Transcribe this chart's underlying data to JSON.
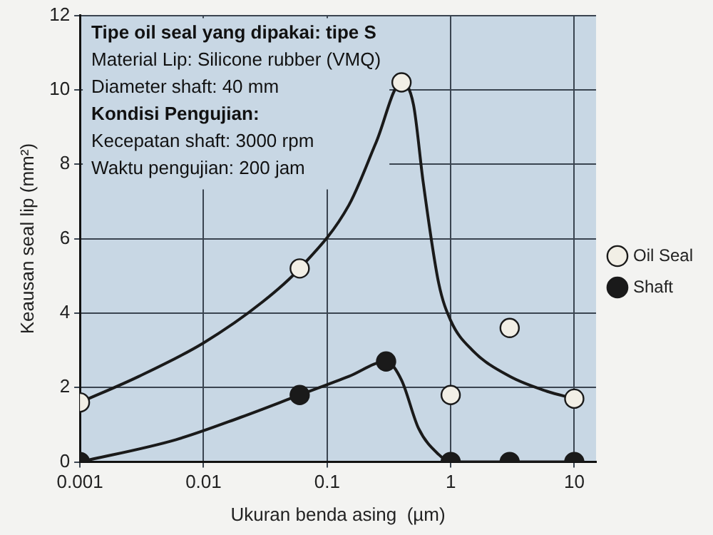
{
  "chart_data": {
    "type": "scatter",
    "xlabel": "Ukuran benda asing  (µm)",
    "ylabel": "Keausan seal lip (mm²)",
    "log": "x",
    "xlim": [
      0.001,
      15
    ],
    "xticks": [
      0.001,
      0.01,
      0.1,
      1,
      10
    ],
    "ylim": [
      0,
      12
    ],
    "yticks": [
      0,
      2,
      4,
      6,
      8,
      10,
      12
    ],
    "grid": true,
    "legend": "right",
    "annotations": [
      "Tipe oil seal yang dipakai: tipe S",
      "Material Lip: Silicone rubber (VMQ)",
      "Diameter shaft: 40 mm",
      "Kondisi Pengujian:",
      "Kecepatan shaft: 3000 rpm",
      "Waktu pengujian: 200 jam"
    ],
    "series": [
      {
        "type": "line",
        "marker": "none",
        "color": "#1a1a1a",
        "x": [
          0.001,
          0.003,
          0.01,
          0.03,
          0.06,
          0.15,
          0.25,
          0.4,
          0.5,
          0.6,
          0.8,
          1,
          1.5,
          3,
          6,
          10
        ],
        "values": [
          1.6,
          2.3,
          3.2,
          4.3,
          5.2,
          6.9,
          8.6,
          10.2,
          9.6,
          7.5,
          4.8,
          3.8,
          3,
          2.3,
          1.9,
          1.7
        ]
      },
      {
        "type": "line",
        "marker": "none",
        "color": "#1a1a1a",
        "x": [
          0.001,
          0.006,
          0.02,
          0.06,
          0.15,
          0.3,
          0.4,
          0.55,
          0.8,
          1,
          2,
          3,
          6,
          10
        ],
        "values": [
          0,
          0.6,
          1.2,
          1.8,
          2.3,
          2.7,
          2.2,
          0.9,
          0.2,
          0,
          0,
          0,
          0,
          0
        ]
      },
      {
        "name": "Oil Seal",
        "type": "scatter",
        "marker": "circle",
        "color": "#f2efe6",
        "x": [
          0.001,
          0.06,
          0.4,
          1,
          3,
          10
        ],
        "values": [
          1.6,
          5.2,
          10.2,
          1.8,
          3.6,
          1.7
        ]
      },
      {
        "name": "Shaft",
        "type": "scatter",
        "marker": "circle",
        "color": "#1a1a1a",
        "x": [
          0.001,
          0.06,
          0.3,
          1,
          3,
          10
        ],
        "values": [
          0,
          1.8,
          2.7,
          0,
          0,
          0
        ]
      }
    ]
  }
}
